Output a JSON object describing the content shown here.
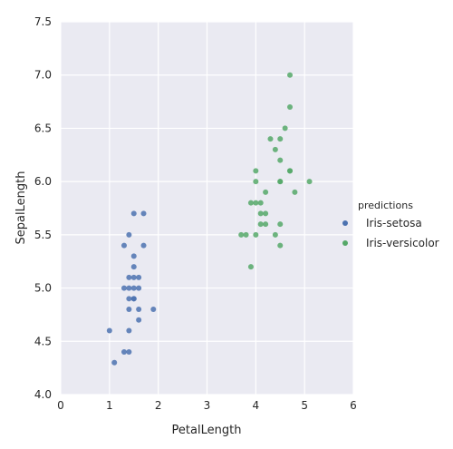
{
  "chart_data": {
    "type": "scatter",
    "xlabel": "PetalLength",
    "ylabel": "SepalLength",
    "xlim": [
      0,
      6
    ],
    "ylim": [
      4.0,
      7.5
    ],
    "xticks": [
      0,
      1,
      2,
      3,
      4,
      5,
      6
    ],
    "yticks": [
      4.0,
      4.5,
      5.0,
      5.5,
      6.0,
      6.5,
      7.0,
      7.5
    ],
    "xtick_labels": [
      "0",
      "1",
      "2",
      "3",
      "4",
      "5",
      "6"
    ],
    "ytick_labels": [
      "4.0",
      "4.5",
      "5.0",
      "5.5",
      "6.0",
      "6.5",
      "7.0",
      "7.5"
    ],
    "grid": true,
    "legend": {
      "title": "predictions",
      "placement": "right"
    },
    "series": [
      {
        "name": "Iris-setosa",
        "color": "#4c72b0",
        "points": [
          [
            1.0,
            4.6
          ],
          [
            1.1,
            4.3
          ],
          [
            1.3,
            4.4
          ],
          [
            1.3,
            5.4
          ],
          [
            1.3,
            5.0
          ],
          [
            1.4,
            4.4
          ],
          [
            1.4,
            5.5
          ],
          [
            1.4,
            5.1
          ],
          [
            1.4,
            4.8
          ],
          [
            1.4,
            4.6
          ],
          [
            1.4,
            4.9
          ],
          [
            1.4,
            5.0
          ],
          [
            1.5,
            5.7
          ],
          [
            1.5,
            5.3
          ],
          [
            1.5,
            5.2
          ],
          [
            1.5,
            5.1
          ],
          [
            1.5,
            5.0
          ],
          [
            1.5,
            4.9
          ],
          [
            1.6,
            5.1
          ],
          [
            1.6,
            5.0
          ],
          [
            1.6,
            4.8
          ],
          [
            1.6,
            4.7
          ],
          [
            1.7,
            5.7
          ],
          [
            1.7,
            5.4
          ],
          [
            1.9,
            4.8
          ],
          [
            1.5,
            4.9
          ]
        ]
      },
      {
        "name": "Iris-versicolor",
        "color": "#55a868",
        "points": [
          [
            3.7,
            5.5
          ],
          [
            3.8,
            5.5
          ],
          [
            3.9,
            5.8
          ],
          [
            3.9,
            5.2
          ],
          [
            4.0,
            6.1
          ],
          [
            4.0,
            6.0
          ],
          [
            4.0,
            5.8
          ],
          [
            4.0,
            5.5
          ],
          [
            4.1,
            5.8
          ],
          [
            4.1,
            5.7
          ],
          [
            4.1,
            5.6
          ],
          [
            4.2,
            5.9
          ],
          [
            4.2,
            5.7
          ],
          [
            4.2,
            5.6
          ],
          [
            4.3,
            6.4
          ],
          [
            4.4,
            6.3
          ],
          [
            4.4,
            5.5
          ],
          [
            4.5,
            6.4
          ],
          [
            4.5,
            6.2
          ],
          [
            4.5,
            6.0
          ],
          [
            4.5,
            5.6
          ],
          [
            4.5,
            5.4
          ],
          [
            4.6,
            6.5
          ],
          [
            4.7,
            7.0
          ],
          [
            4.7,
            6.7
          ],
          [
            4.7,
            6.1
          ],
          [
            4.8,
            5.9
          ],
          [
            5.1,
            6.0
          ],
          [
            4.5,
            6.0
          ],
          [
            4.7,
            6.1
          ]
        ]
      }
    ]
  }
}
